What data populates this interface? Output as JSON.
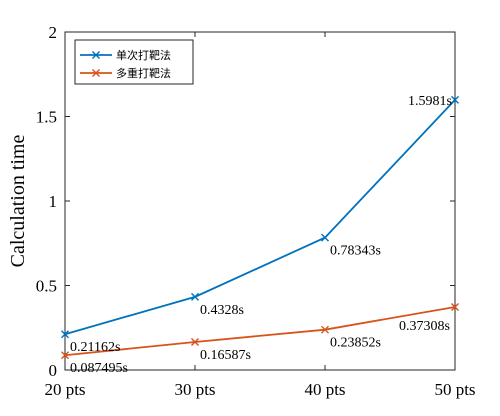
{
  "chart_data": {
    "type": "line",
    "title": "",
    "xlabel": "",
    "ylabel": "Calculation time",
    "categories": [
      "20 pts",
      "30 pts",
      "40 pts",
      "50 pts"
    ],
    "ylim": [
      0,
      2
    ],
    "yticks": [
      "0",
      "0.5",
      "1",
      "1.5",
      "2"
    ],
    "grid": false,
    "legend_position": "top-left",
    "series": [
      {
        "name": "单次打靶法",
        "color": "#0072BD",
        "marker": "x",
        "values": [
          0.21162,
          0.4328,
          0.78343,
          1.5981
        ],
        "labels": [
          "0.21162s",
          "0.4328s",
          "0.78343s",
          "1.5981s"
        ]
      },
      {
        "name": "多重打靶法",
        "color": "#D95319",
        "marker": "x",
        "values": [
          0.087495,
          0.16587,
          0.23852,
          0.37308
        ],
        "labels": [
          "0.087495s",
          "0.16587s",
          "0.23852s",
          "0.37308s"
        ]
      }
    ]
  }
}
